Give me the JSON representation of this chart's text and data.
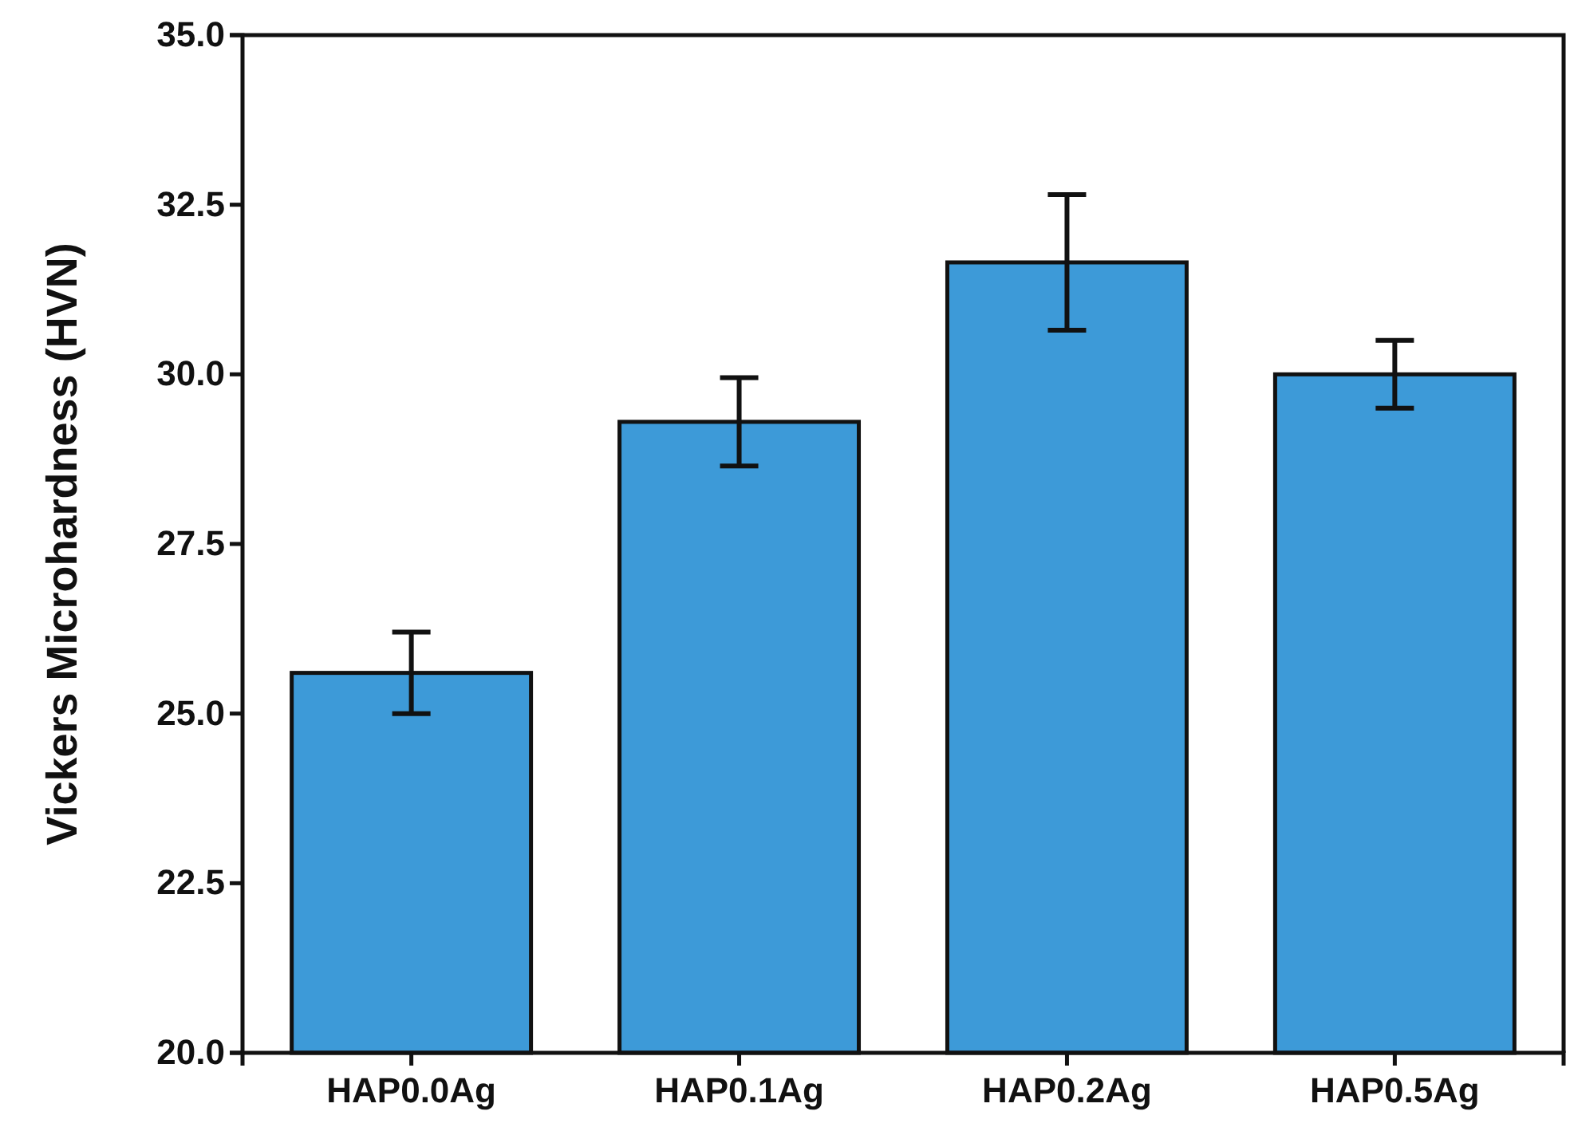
{
  "chart_data": {
    "type": "bar",
    "ylabel": "Vickers Microhardness (HVN)",
    "categories": [
      "HAP0.0Ag",
      "HAP0.1Ag",
      "HAP0.2Ag",
      "HAP0.5Ag"
    ],
    "values": [
      25.6,
      29.3,
      31.65,
      30.0
    ],
    "errors": [
      0.6,
      0.65,
      1.0,
      0.5
    ],
    "color": "#3d9ad8",
    "ylim": [
      20,
      35
    ],
    "yticks": [
      {
        "value": 20,
        "label": "20.0"
      },
      {
        "value": 22.5,
        "label": "22.5"
      },
      {
        "value": 25,
        "label": "25.0"
      },
      {
        "value": 27.5,
        "label": "27.5"
      },
      {
        "value": 30,
        "label": "30.0"
      },
      {
        "value": 32.5,
        "label": "32.5"
      },
      {
        "value": 35,
        "label": "35.0"
      }
    ],
    "grid": false
  }
}
